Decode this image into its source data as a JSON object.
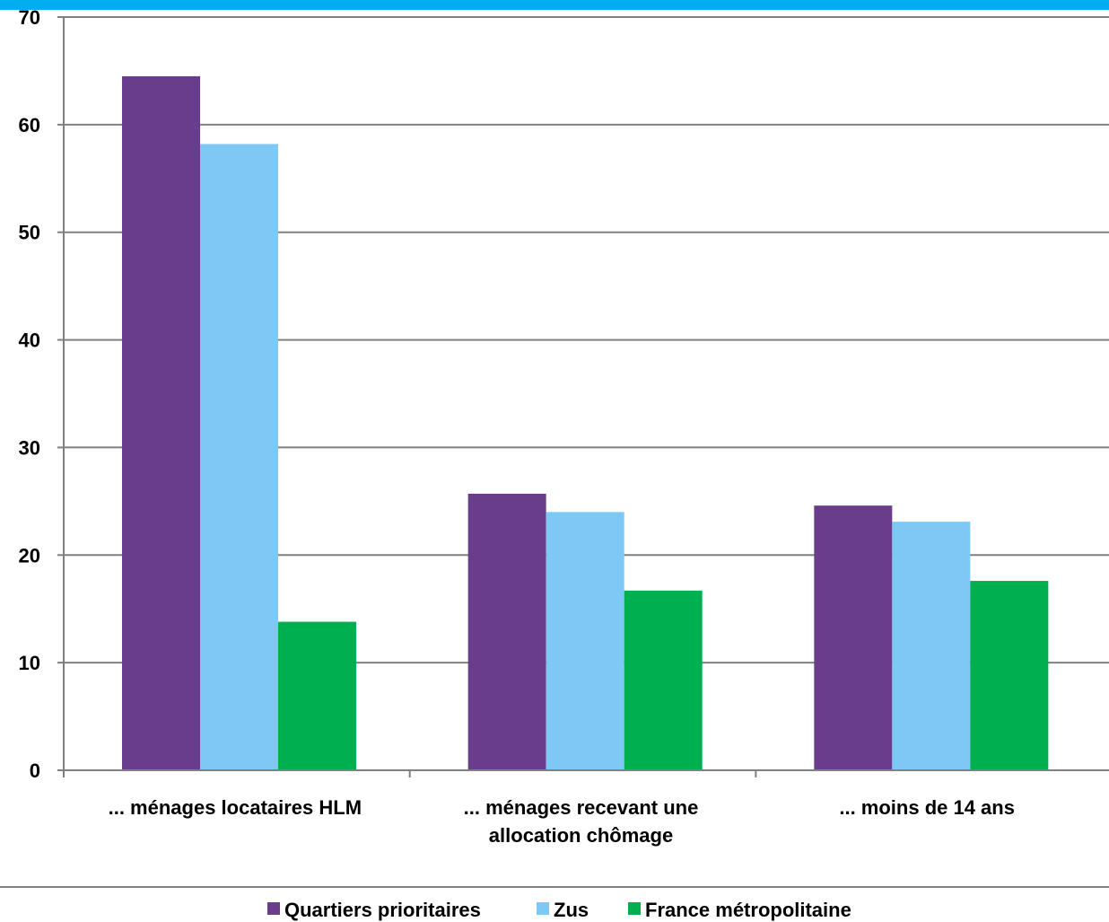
{
  "chart_data": {
    "type": "bar",
    "categories": [
      [
        "... ménages locataires HLM"
      ],
      [
        "... ménages recevant une",
        "allocation chômage"
      ],
      [
        "... moins de 14 ans"
      ]
    ],
    "series": [
      {
        "name": "Quartiers prioritaires",
        "color": "#6a3d8c",
        "values": [
          64.5,
          25.7,
          24.6
        ]
      },
      {
        "name": "Zus",
        "color": "#7ec8f5",
        "values": [
          58.2,
          24.0,
          23.1
        ]
      },
      {
        "name": "France métropolitaine",
        "color": "#00b050",
        "values": [
          13.8,
          16.7,
          17.6
        ]
      }
    ],
    "ylim": [
      0,
      70
    ],
    "yticks": [
      0,
      10,
      20,
      30,
      40,
      50,
      60,
      70
    ],
    "grid": true,
    "legend": "bottom",
    "header_bar_color": "#00aeef",
    "gridline_color": "#808080"
  }
}
